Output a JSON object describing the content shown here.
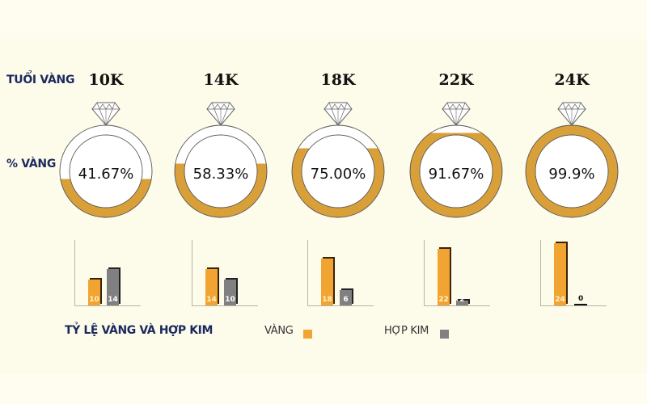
{
  "labels": {
    "karat_row": "TUỔI VÀNG",
    "percent_row": "% VÀNG",
    "ratio_title": "TỶ LỆ VÀNG VÀ HỢP KIM"
  },
  "legend": {
    "gold": "VÀNG",
    "alloy": "HỢP KIM",
    "gold_color": "#f2a432",
    "alloy_color": "#808080"
  },
  "items": [
    {
      "karat": "10K",
      "percent": "41.67%",
      "fill": 0.4167,
      "gold": "10",
      "alloy": "14"
    },
    {
      "karat": "14K",
      "percent": "58.33%",
      "fill": 0.5833,
      "gold": "14",
      "alloy": "10"
    },
    {
      "karat": "18K",
      "percent": "75.00%",
      "fill": 0.75,
      "gold": "18",
      "alloy": "6"
    },
    {
      "karat": "22K",
      "percent": "91.67%",
      "fill": 0.9167,
      "gold": "22",
      "alloy": "2"
    },
    {
      "karat": "24K",
      "percent": "99.9%",
      "fill": 0.999,
      "gold": "24",
      "alloy": "0"
    }
  ],
  "chart_data": [
    {
      "type": "pie",
      "title": "% VÀNG",
      "categories": [
        "10K",
        "14K",
        "18K",
        "22K",
        "24K"
      ],
      "values": [
        41.67,
        58.33,
        75.0,
        91.67,
        99.9
      ],
      "note": "Ring fill level shows gold percentage per karat"
    },
    {
      "type": "bar",
      "title": "TỶ LỆ VÀNG VÀ HỢP KIM",
      "categories": [
        "10K",
        "14K",
        "18K",
        "22K",
        "24K"
      ],
      "series": [
        {
          "name": "VÀNG",
          "values": [
            10,
            14,
            18,
            22,
            24
          ],
          "color": "#f2a432"
        },
        {
          "name": "HỢP KIM",
          "values": [
            14,
            10,
            6,
            2,
            0
          ],
          "color": "#808080"
        }
      ],
      "ylim": [
        0,
        24
      ],
      "grid": false,
      "legend_position": "bottom"
    }
  ]
}
